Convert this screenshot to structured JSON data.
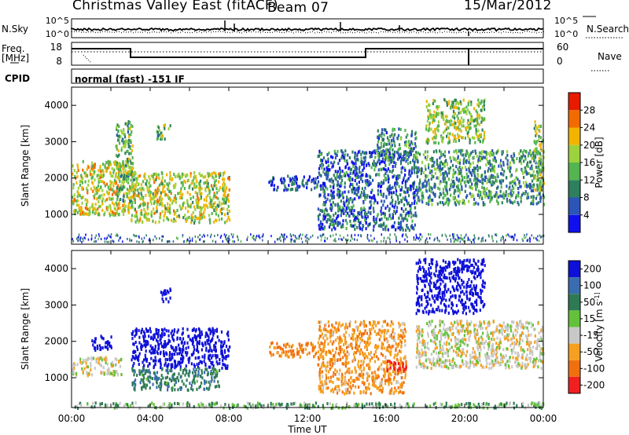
{
  "header": {
    "station": "Christmas Valley East (fitACF)",
    "beam": "Beam 07",
    "date": "15/Mar/2012"
  },
  "scan_panels": {
    "nsky_label": "N.Sky",
    "nsearch_label": "N.Search",
    "nsky_ticks": [
      "10^5",
      "10^0"
    ],
    "freq_label": "Freq.",
    "freq_unit": "[MHz]",
    "freq_ticks": [
      "18",
      "8"
    ],
    "nave_label": "Nave",
    "nave_ticks": [
      "60",
      "0"
    ],
    "cpid_label": "CPID",
    "cpid_value": "normal (fast) -151 IF"
  },
  "colors": {
    "power": [
      "#1010ee",
      "#2c55b8",
      "#2e7f5e",
      "#54b550",
      "#9bd23d",
      "#f2b400",
      "#f26b00",
      "#e61b00"
    ],
    "velocity": [
      "#0e10d8",
      "#3a6cb0",
      "#2e7a55",
      "#63c23a",
      "#c8c8c8",
      "#f5a020",
      "#f07010",
      "#f02020"
    ]
  },
  "chart_data": [
    {
      "type": "heatmap",
      "panel": "power",
      "ylabel": "Slant Range [km]",
      "ylim": [
        180,
        4500
      ],
      "yticks": [
        1000,
        2000,
        3000,
        4000
      ],
      "xlim": [
        0,
        24
      ],
      "colorbar_label": "Power [dB]",
      "colorbar_ticks": [
        "4",
        "8",
        "12",
        "16",
        "20",
        "24",
        "28"
      ],
      "colorbar_range": [
        0,
        32
      ],
      "regions": [
        {
          "t": [
            0.0,
            3.0
          ],
          "r": [
            1000,
            2500
          ],
          "v": 19
        },
        {
          "t": [
            2.2,
            3.1
          ],
          "r": [
            1400,
            3600
          ],
          "v": 14
        },
        {
          "t": [
            3.0,
            8.0
          ],
          "r": [
            800,
            2200
          ],
          "v": 18
        },
        {
          "t": [
            4.3,
            5.0
          ],
          "r": [
            3100,
            3500
          ],
          "v": 14
        },
        {
          "t": [
            10.0,
            12.5
          ],
          "r": [
            1700,
            2100
          ],
          "v": 6
        },
        {
          "t": [
            12.5,
            17.5
          ],
          "r": [
            600,
            2800
          ],
          "v": 7
        },
        {
          "t": [
            15.5,
            17.5
          ],
          "r": [
            2500,
            3400
          ],
          "v": 10
        },
        {
          "t": [
            17.5,
            24.0
          ],
          "r": [
            1300,
            2800
          ],
          "v": 11
        },
        {
          "t": [
            18.0,
            21.0
          ],
          "r": [
            3000,
            4200
          ],
          "v": 17
        },
        {
          "t": [
            23.5,
            24.0
          ],
          "r": [
            1700,
            3600
          ],
          "v": 17
        }
      ]
    },
    {
      "type": "heatmap",
      "panel": "velocity",
      "ylabel": "Slant Range [km]",
      "ylim": [
        180,
        4500
      ],
      "yticks": [
        1000,
        2000,
        3000,
        4000
      ],
      "xlim": [
        0,
        24
      ],
      "xlabel": "Time UT",
      "xticks": [
        "00:00",
        "04:00",
        "08:00",
        "12:00",
        "16:00",
        "20:00",
        "00:00"
      ],
      "colorbar_label": "Velocity [m s^-1]",
      "colorbar_ticks": [
        "200",
        "100",
        "50",
        "15",
        "-15",
        "-50",
        "-100",
        "-200"
      ],
      "regions": [
        {
          "t": [
            0.0,
            2.5
          ],
          "r": [
            1100,
            1600
          ],
          "v": 0
        },
        {
          "t": [
            1.0,
            2.0
          ],
          "r": [
            1800,
            2200
          ],
          "v": 200
        },
        {
          "t": [
            3.0,
            8.0
          ],
          "r": [
            1300,
            2400
          ],
          "v": 180
        },
        {
          "t": [
            3.0,
            7.5
          ],
          "r": [
            700,
            1300
          ],
          "v": 60
        },
        {
          "t": [
            4.5,
            5.0
          ],
          "r": [
            3100,
            3500
          ],
          "v": 180
        },
        {
          "t": [
            10.0,
            12.5
          ],
          "r": [
            1600,
            2000
          ],
          "v": -60
        },
        {
          "t": [
            12.5,
            17.0
          ],
          "r": [
            600,
            2600
          ],
          "v": -40
        },
        {
          "t": [
            16.0,
            17.0
          ],
          "r": [
            1200,
            1500
          ],
          "v": -200
        },
        {
          "t": [
            17.5,
            24.0
          ],
          "r": [
            1300,
            2600
          ],
          "v": 0
        },
        {
          "t": [
            17.5,
            21.0
          ],
          "r": [
            2800,
            4300
          ],
          "v": 180
        },
        {
          "t": [
            0.0,
            24.0
          ],
          "r": [
            200,
            350
          ],
          "v": 30
        }
      ]
    }
  ]
}
